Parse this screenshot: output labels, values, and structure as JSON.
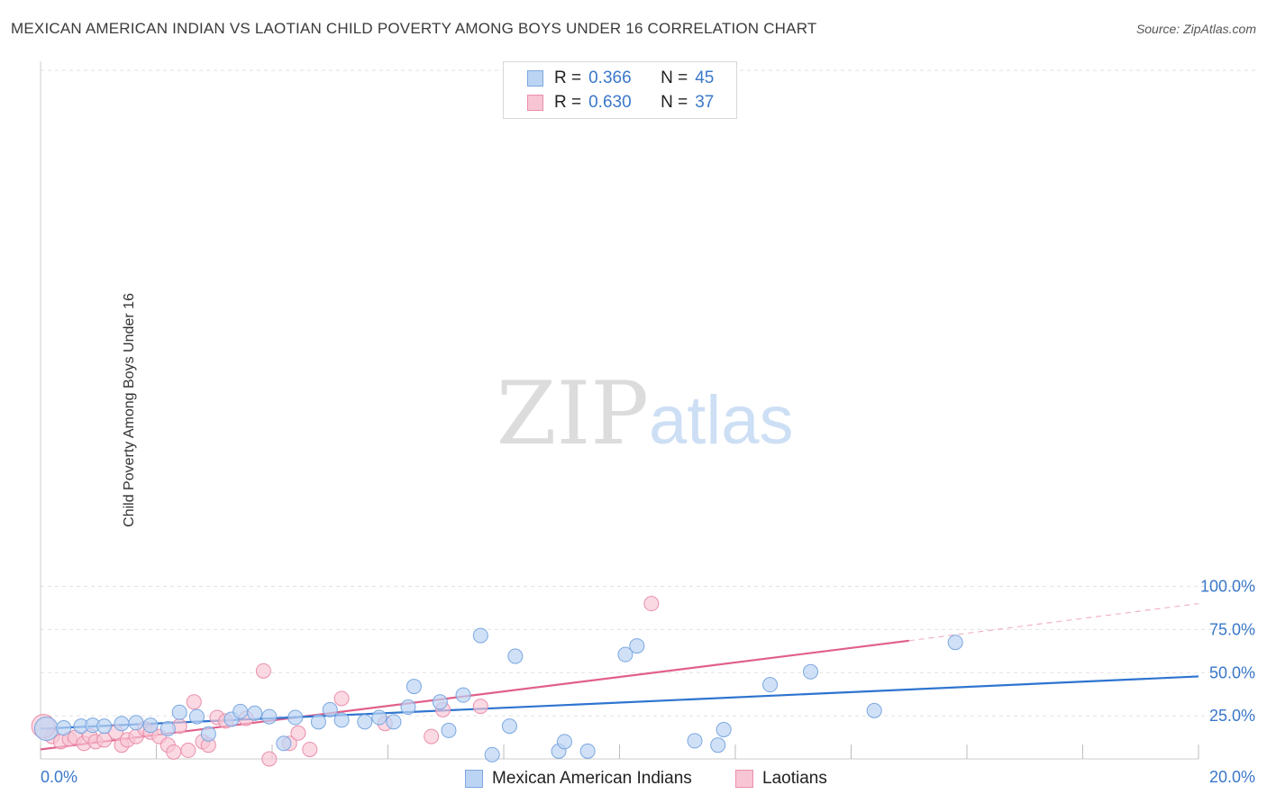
{
  "title": "MEXICAN AMERICAN INDIAN VS LAOTIAN CHILD POVERTY AMONG BOYS UNDER 16 CORRELATION CHART",
  "source": "Source: ZipAtlas.com",
  "watermark_zip": "ZIP",
  "watermark_atlas": "atlas",
  "legend": {
    "r_label": "R =",
    "n_label": "N =",
    "series1": {
      "r": "0.366",
      "n": "45"
    },
    "series2": {
      "r": "0.630",
      "n": "37"
    }
  },
  "chart_data": {
    "type": "scatter",
    "ylabel": "Child Poverty Among Boys Under 16",
    "xlabel": "",
    "xlim": [
      0,
      20
    ],
    "ylim": [
      0,
      100
    ],
    "x_tick_labels": [
      "0.0%",
      "20.0%"
    ],
    "y_tick_labels": [
      "25.0%",
      "50.0%",
      "75.0%",
      "100.0%"
    ],
    "y_ticks": [
      25,
      50,
      75,
      100
    ],
    "grid": true,
    "legend_position": "top-center",
    "colors": {
      "series1_fill": "#bcd4f4",
      "series1_stroke": "#7aa7e0",
      "series1_line": "#2e74d0",
      "series2_fill": "#f8c5d4",
      "series2_stroke": "#ea8fab",
      "series2_line": "#e0608a",
      "tick_label": "#3a78c9"
    },
    "series": [
      {
        "name": "Mexican American Indians",
        "points": [
          [
            0.1,
            17.5
          ],
          [
            0.4,
            18.0
          ],
          [
            0.7,
            19.0
          ],
          [
            0.9,
            19.5
          ],
          [
            1.1,
            19.0
          ],
          [
            1.4,
            20.5
          ],
          [
            1.65,
            21.0
          ],
          [
            1.9,
            19.5
          ],
          [
            2.2,
            17.5
          ],
          [
            2.4,
            27.0
          ],
          [
            2.7,
            24.5
          ],
          [
            2.9,
            14.5
          ],
          [
            3.3,
            23.0
          ],
          [
            3.45,
            27.5
          ],
          [
            3.7,
            26.5
          ],
          [
            3.95,
            24.5
          ],
          [
            4.2,
            9.0
          ],
          [
            4.4,
            24.0
          ],
          [
            4.8,
            21.5
          ],
          [
            5.0,
            28.5
          ],
          [
            5.2,
            22.5
          ],
          [
            5.6,
            21.5
          ],
          [
            5.85,
            24.0
          ],
          [
            6.1,
            21.5
          ],
          [
            6.35,
            30.0
          ],
          [
            6.45,
            42.0
          ],
          [
            6.9,
            33.0
          ],
          [
            7.05,
            16.5
          ],
          [
            7.3,
            37.0
          ],
          [
            7.6,
            71.5
          ],
          [
            7.8,
            2.5
          ],
          [
            8.1,
            19.0
          ],
          [
            8.2,
            59.5
          ],
          [
            8.95,
            4.5
          ],
          [
            9.05,
            10.0
          ],
          [
            9.45,
            4.5
          ],
          [
            10.1,
            60.5
          ],
          [
            10.3,
            65.5
          ],
          [
            11.3,
            10.5
          ],
          [
            11.7,
            8.0
          ],
          [
            11.8,
            17.0
          ],
          [
            12.6,
            43.0
          ],
          [
            13.3,
            50.5
          ],
          [
            14.4,
            28.0
          ],
          [
            15.8,
            67.5
          ]
        ],
        "trend": {
          "x0": 0,
          "y0": 17.5,
          "x1": 20,
          "y1": 47.8
        }
      },
      {
        "name": "Laotians",
        "points": [
          [
            0.2,
            13.0
          ],
          [
            0.35,
            10.0
          ],
          [
            0.5,
            11.5
          ],
          [
            0.6,
            12.5
          ],
          [
            0.75,
            9.0
          ],
          [
            0.85,
            13.5
          ],
          [
            0.95,
            10.0
          ],
          [
            1.1,
            11.0
          ],
          [
            1.3,
            15.5
          ],
          [
            1.4,
            8.0
          ],
          [
            1.5,
            11.0
          ],
          [
            1.65,
            13.0
          ],
          [
            1.8,
            17.5
          ],
          [
            1.9,
            15.5
          ],
          [
            2.05,
            13.0
          ],
          [
            2.2,
            8.0
          ],
          [
            2.3,
            4.0
          ],
          [
            2.4,
            19.0
          ],
          [
            2.55,
            5.0
          ],
          [
            2.65,
            33.0
          ],
          [
            2.8,
            10.0
          ],
          [
            2.9,
            8.0
          ],
          [
            3.05,
            24.0
          ],
          [
            3.2,
            22.0
          ],
          [
            3.55,
            23.5
          ],
          [
            3.85,
            51.0
          ],
          [
            3.95,
            0.0
          ],
          [
            4.3,
            9.0
          ],
          [
            4.45,
            15.0
          ],
          [
            4.65,
            5.5
          ],
          [
            5.2,
            35.0
          ],
          [
            5.95,
            20.5
          ],
          [
            6.75,
            13.0
          ],
          [
            6.95,
            28.5
          ],
          [
            7.6,
            30.5
          ],
          [
            10.55,
            90.0
          ],
          [
            0.05,
            19.0
          ]
        ],
        "trend": {
          "x0": 0,
          "y0": 5.5,
          "x1": 15.0,
          "y1": 68.5
        },
        "trend_extension": {
          "x0": 15.0,
          "y0": 68.5,
          "x1": 20,
          "y1": 90.0
        }
      }
    ]
  }
}
